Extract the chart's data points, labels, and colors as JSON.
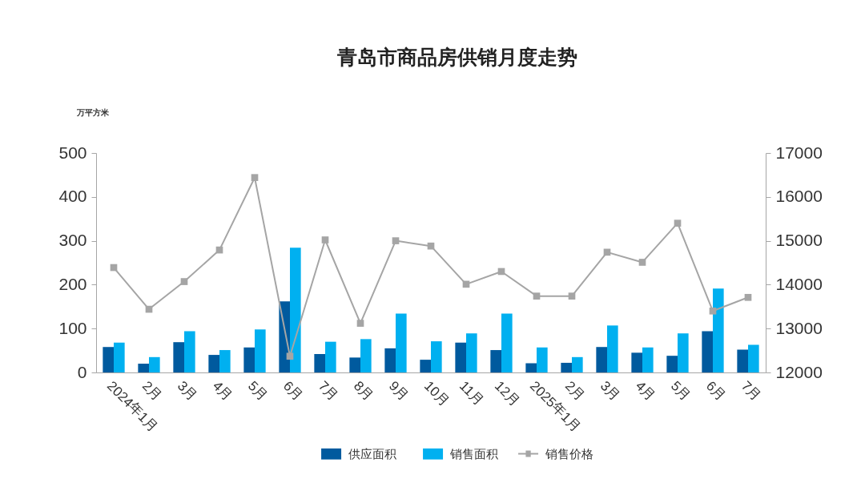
{
  "chart_data": {
    "type": "bar",
    "title": "青岛市商品房供销月度走势",
    "ylabel": "万平方米",
    "categories": [
      "2024年1月",
      "2月",
      "3月",
      "4月",
      "5月",
      "6月",
      "7月",
      "8月",
      "9月",
      "10月",
      "11月",
      "12月",
      "2025年1月",
      "2月",
      "3月",
      "4月",
      "5月",
      "6月",
      "7月"
    ],
    "series": [
      {
        "name": "供应面积",
        "color": "#005a9e",
        "values": [
          58,
          20,
          69,
          40,
          57,
          162,
          42,
          34,
          55,
          29,
          68,
          51,
          21,
          22,
          58,
          45,
          38,
          94,
          52
        ]
      },
      {
        "name": "销售面积",
        "color": "#00b0f0",
        "values": [
          68,
          35,
          94,
          51,
          98,
          284,
          70,
          76,
          134,
          71,
          89,
          134,
          57,
          35,
          107,
          57,
          89,
          191,
          63
        ]
      },
      {
        "name": "销售价格",
        "color": "#a5a5a5",
        "type": "line",
        "axis": "y2",
        "values": [
          14390,
          13440,
          14070,
          14790,
          16440,
          12370,
          15020,
          13120,
          15000,
          14880,
          14010,
          14300,
          13740,
          13740,
          14740,
          14510,
          15400,
          13400,
          13710
        ]
      }
    ],
    "ylim": [
      0,
      500
    ],
    "yticks": [
      0,
      100,
      200,
      300,
      400,
      500
    ],
    "y2lim": [
      12000,
      17000
    ],
    "y2ticks": [
      12000,
      13000,
      14000,
      15000,
      16000,
      17000
    ],
    "grid": false,
    "legend": "bottom",
    "marker": "square"
  }
}
